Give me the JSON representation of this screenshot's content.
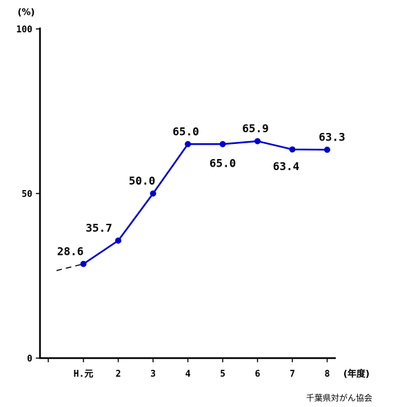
{
  "chart_data": {
    "type": "line",
    "y_unit": "(%)",
    "x_unit": "(年度)",
    "source": "千葉県対がん協会",
    "categories": [
      "H.元",
      "2",
      "3",
      "4",
      "5",
      "6",
      "7",
      "8"
    ],
    "values": [
      28.6,
      35.7,
      50.0,
      65.0,
      65.0,
      65.9,
      63.4,
      63.3
    ],
    "data_labels": [
      "28.6",
      "35.7",
      "50.0",
      "65.0",
      "65.0",
      "65.9",
      "63.4",
      "63.3"
    ],
    "y_ticks": [
      "100",
      "50",
      "0"
    ],
    "ylim": [
      0,
      100
    ],
    "leading_dashed_value": 26.6,
    "grid": false,
    "colors": {
      "line": "#0000cc",
      "marker": "#0000cc",
      "axis": "#000000"
    }
  }
}
